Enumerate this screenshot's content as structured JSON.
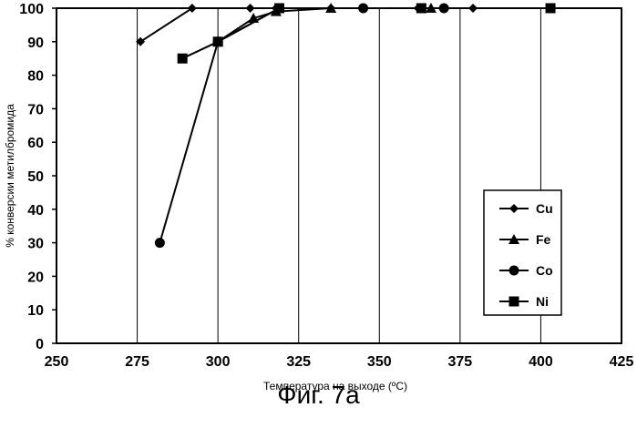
{
  "caption": "Фиг. 7а",
  "chart_data": {
    "type": "line",
    "xlabel": "Температура на выходе (ºС)",
    "ylabel": "% конверсии метилбромида",
    "xlim": [
      250,
      425
    ],
    "ylim": [
      0,
      100
    ],
    "x_ticks": [
      250,
      275,
      300,
      325,
      350,
      375,
      400,
      425
    ],
    "y_ticks": [
      0,
      10,
      20,
      30,
      40,
      50,
      60,
      70,
      80,
      90,
      100
    ],
    "grid": "vertical",
    "legend_position": "right",
    "series": [
      {
        "name": "Cu",
        "marker": "diamond",
        "points": [
          [
            276,
            90
          ],
          [
            292,
            100
          ],
          [
            310,
            100
          ],
          [
            318,
            100
          ],
          [
            335,
            100
          ],
          [
            362,
            100
          ],
          [
            379,
            100
          ],
          [
            403,
            100
          ]
        ]
      },
      {
        "name": "Fe",
        "marker": "triangle",
        "points": [
          [
            300,
            90
          ],
          [
            311,
            97
          ],
          [
            318,
            99
          ],
          [
            335,
            100
          ],
          [
            366,
            100
          ]
        ]
      },
      {
        "name": "Co",
        "marker": "circle",
        "points": [
          [
            282,
            30
          ],
          [
            300,
            90
          ],
          [
            319,
            100
          ],
          [
            345,
            100
          ],
          [
            370,
            100
          ]
        ]
      },
      {
        "name": "Ni",
        "marker": "square",
        "points": [
          [
            289,
            85
          ],
          [
            300,
            90
          ],
          [
            319,
            100
          ],
          [
            363,
            100
          ],
          [
            403,
            100
          ]
        ]
      }
    ]
  }
}
